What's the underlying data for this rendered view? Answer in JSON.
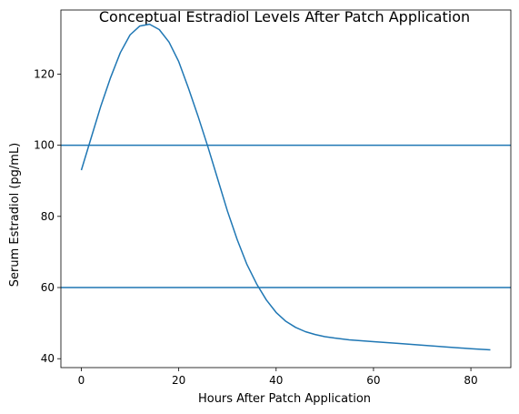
{
  "chart_data": {
    "type": "line",
    "title": "Conceptual Estradiol Levels After Patch Application",
    "xlabel": "Hours After Patch Application",
    "ylabel": "Serum Estradiol (pg/mL)",
    "xlim": [
      -4.2,
      88.2
    ],
    "ylim": [
      37.5,
      138.0
    ],
    "xticks": [
      0,
      20,
      40,
      60,
      80
    ],
    "yticks": [
      40,
      60,
      80,
      100,
      120
    ],
    "grid": false,
    "series": [
      {
        "color": "#1f77b4",
        "x": [
          0,
          2,
          4,
          6,
          8,
          10,
          12,
          14,
          16,
          18,
          20,
          22,
          24,
          26,
          28,
          30,
          32,
          34,
          36,
          38,
          40,
          42,
          44,
          46,
          48,
          50,
          52,
          55,
          60,
          65,
          70,
          75,
          80,
          84
        ],
        "y": [
          93,
          102,
          111,
          119,
          126,
          131,
          133.5,
          134,
          132.5,
          129,
          123.5,
          116,
          108,
          99.5,
          90.5,
          81.5,
          73.5,
          66.5,
          61,
          56.5,
          53,
          50.5,
          48.8,
          47.6,
          46.8,
          46.2,
          45.8,
          45.3,
          44.8,
          44.3,
          43.8,
          43.3,
          42.8,
          42.5
        ]
      }
    ],
    "reference_lines": [
      {
        "orientation": "horizontal",
        "y": 100,
        "color": "#1f77b4"
      },
      {
        "orientation": "horizontal",
        "y": 60,
        "color": "#1f77b4"
      }
    ]
  }
}
